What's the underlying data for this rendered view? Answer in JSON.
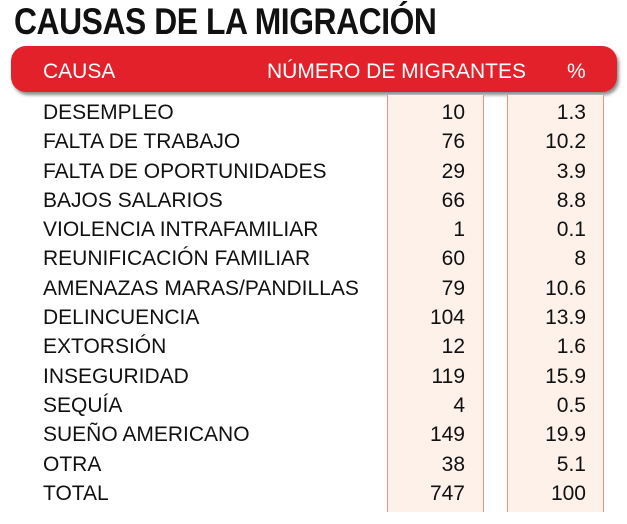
{
  "chart_data": {
    "type": "table",
    "title": "CAUSAS DE LA MIGRACIÓN",
    "columns": [
      "CAUSA",
      "NÚMERO DE MIGRANTES",
      "%"
    ],
    "rows": [
      {
        "causa": "DESEMPLEO",
        "migrantes": "10",
        "pct": "1.3"
      },
      {
        "causa": "FALTA DE TRABAJO",
        "migrantes": "76",
        "pct": "10.2"
      },
      {
        "causa": "FALTA DE OPORTUNIDADES",
        "migrantes": "29",
        "pct": "3.9"
      },
      {
        "causa": "BAJOS SALARIOS",
        "migrantes": "66",
        "pct": "8.8"
      },
      {
        "causa": "VIOLENCIA INTRAFAMILIAR",
        "migrantes": "1",
        "pct": "0.1"
      },
      {
        "causa": "REUNIFICACIÓN FAMILIAR",
        "migrantes": "60",
        "pct": "8"
      },
      {
        "causa": "AMENAZAS MARAS/PANDILLAS",
        "migrantes": "79",
        "pct": "10.6"
      },
      {
        "causa": "DELINCUENCIA",
        "migrantes": "104",
        "pct": "13.9"
      },
      {
        "causa": "EXTORSIÓN",
        "migrantes": "12",
        "pct": "1.6"
      },
      {
        "causa": "INSEGURIDAD",
        "migrantes": "119",
        "pct": "15.9"
      },
      {
        "causa": "SEQUÍA",
        "migrantes": "4",
        "pct": "0.5"
      },
      {
        "causa": "SUEÑO AMERICANO",
        "migrantes": "149",
        "pct": "19.9"
      },
      {
        "causa": "OTRA",
        "migrantes": "38",
        "pct": "5.1"
      },
      {
        "causa": "TOTAL",
        "migrantes": "747",
        "pct": "100"
      }
    ]
  },
  "colors": {
    "header_bar": "#e3212b",
    "column_lines": "#e8967b",
    "column_shade": "#fdf1ea"
  }
}
